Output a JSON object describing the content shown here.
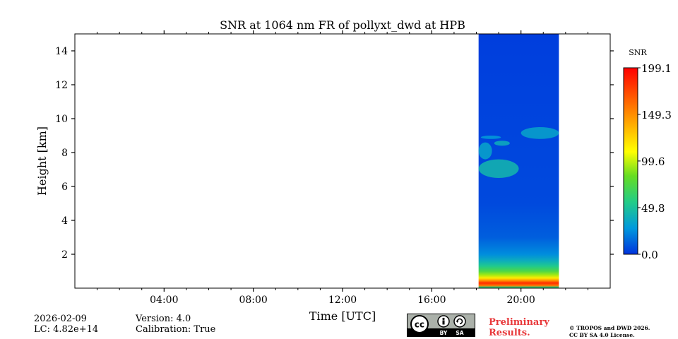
{
  "chart_data": {
    "type": "heatmap",
    "title": "SNR at 1064 nm FR of pollyxt_dwd at HPB",
    "xlabel": "Time [UTC]",
    "ylabel": "Height [km]",
    "x_range_hours": [
      0,
      24
    ],
    "y_range_km": [
      0,
      15
    ],
    "x_ticks": [
      {
        "value": 4,
        "label": "04:00"
      },
      {
        "value": 8,
        "label": "08:00"
      },
      {
        "value": 12,
        "label": "12:00"
      },
      {
        "value": 16,
        "label": "16:00"
      },
      {
        "value": 20,
        "label": "20:00"
      }
    ],
    "y_ticks": [
      {
        "value": 2,
        "label": "2"
      },
      {
        "value": 4,
        "label": "4"
      },
      {
        "value": 6,
        "label": "6"
      },
      {
        "value": 8,
        "label": "8"
      },
      {
        "value": 10,
        "label": "10"
      },
      {
        "value": 12,
        "label": "12"
      },
      {
        "value": 14,
        "label": "14"
      }
    ],
    "data_time_range_hours": [
      18.1,
      21.7
    ],
    "profile": [
      {
        "height_km": 0.05,
        "snr": 60
      },
      {
        "height_km": 0.15,
        "snr": 160
      },
      {
        "height_km": 0.3,
        "snr": 185
      },
      {
        "height_km": 0.45,
        "snr": 150
      },
      {
        "height_km": 0.6,
        "snr": 120
      },
      {
        "height_km": 0.8,
        "snr": 95
      },
      {
        "height_km": 1.0,
        "snr": 75
      },
      {
        "height_km": 1.3,
        "snr": 55
      },
      {
        "height_km": 1.6,
        "snr": 40
      },
      {
        "height_km": 2.0,
        "snr": 25
      },
      {
        "height_km": 3.0,
        "snr": 12
      },
      {
        "height_km": 5.0,
        "snr": 6
      },
      {
        "height_km": 15.0,
        "snr": 3
      }
    ],
    "cloud_layers": [
      {
        "time_start": 18.1,
        "time_end": 19.9,
        "height_bottom_km": 6.5,
        "height_top_km": 7.6,
        "snr": 45
      },
      {
        "time_start": 18.1,
        "time_end": 18.7,
        "height_bottom_km": 7.6,
        "height_top_km": 8.6,
        "snr": 35
      },
      {
        "time_start": 18.2,
        "time_end": 19.1,
        "height_bottom_km": 8.8,
        "height_top_km": 9.0,
        "snr": 30
      },
      {
        "time_start": 18.8,
        "time_end": 19.5,
        "height_bottom_km": 8.4,
        "height_top_km": 8.7,
        "snr": 40
      },
      {
        "time_start": 20.0,
        "time_end": 21.7,
        "height_bottom_km": 8.8,
        "height_top_km": 9.5,
        "snr": 35
      }
    ],
    "colorbar": {
      "label": "SNR",
      "range": [
        0.0,
        199.1
      ],
      "ticks": [
        "0.0",
        "49.8",
        "99.6",
        "149.3",
        "199.1"
      ],
      "colors": [
        "#0033dd",
        "#0099dd",
        "#22cc88",
        "#66dd22",
        "#ffff00",
        "#ffaa00",
        "#ff5500",
        "#ff0000"
      ]
    }
  },
  "info": {
    "date": "2026-02-09",
    "lc": "LC: 4.82e+14",
    "version": "Version: 4.0",
    "calibration": "Calibration: True"
  },
  "license": {
    "badge_cc": "cc",
    "badge_by": "BY",
    "badge_sa": "SA",
    "preliminary_line1": "Preliminary",
    "preliminary_line2": "Results.",
    "copyright_line1": "© TROPOS and DWD 2026.",
    "copyright_line2": "CC BY SA 4.0 License."
  }
}
